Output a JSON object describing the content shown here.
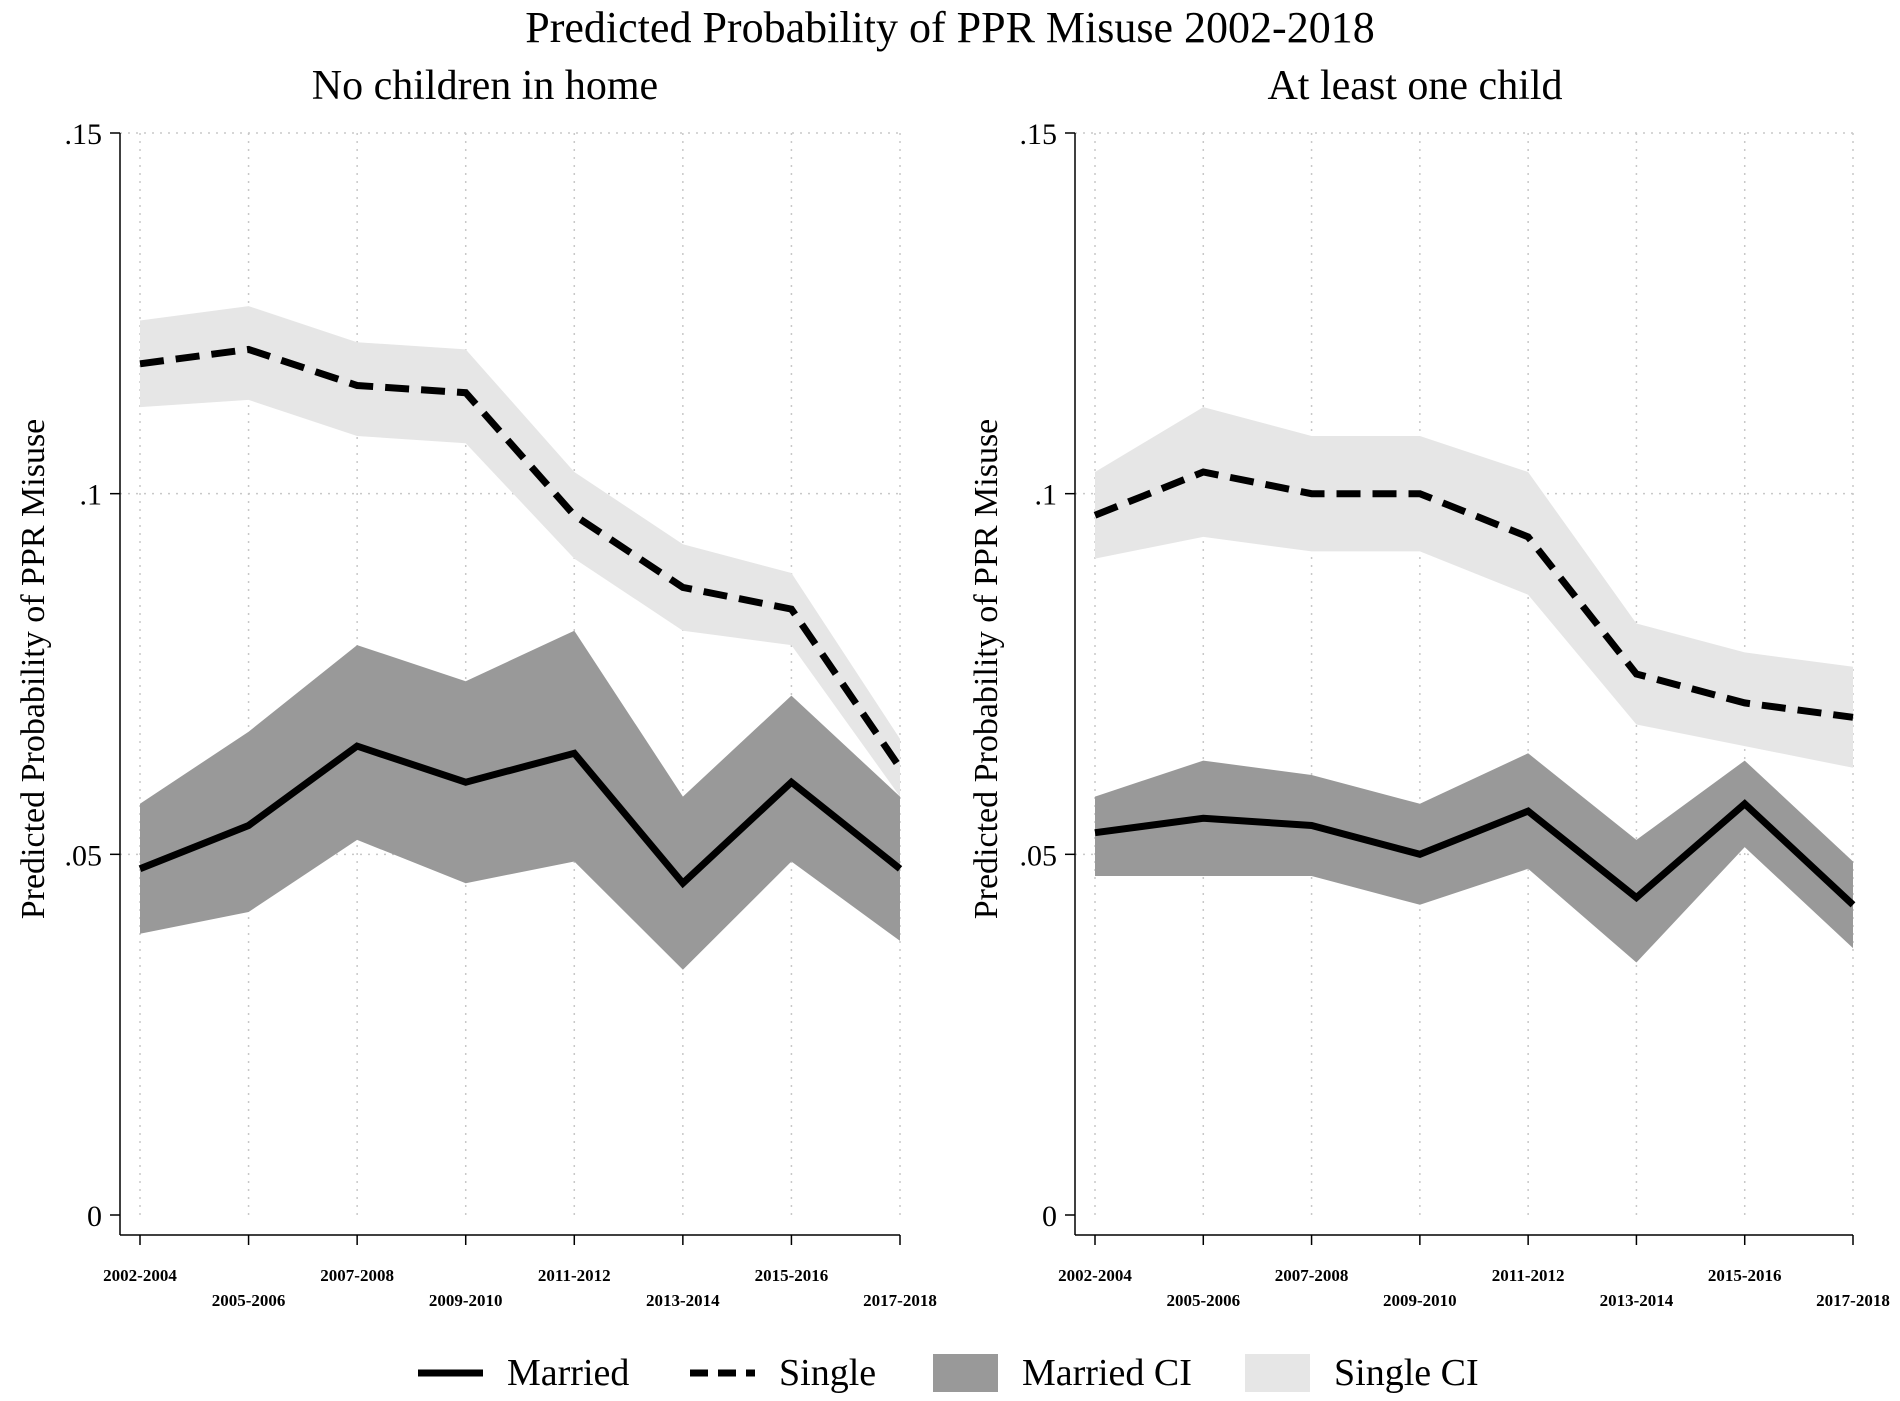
{
  "title": "Predicted Probability of PPR Misuse 2002-2018",
  "colors": {
    "line": "#000000",
    "married_ci": "#999999",
    "single_ci": "#e6e6e6",
    "grid": "#c8c8c8"
  },
  "legend": [
    {
      "key": "married",
      "label": "Married"
    },
    {
      "key": "single",
      "label": "Single"
    },
    {
      "key": "married_ci",
      "label": "Married CI"
    },
    {
      "key": "single_ci",
      "label": "Single CI"
    }
  ],
  "chart_data": [
    {
      "type": "line",
      "title": "No children in home",
      "ylabel": "Predicted Probability of PPR Misuse",
      "xlabel": "",
      "ylim": [
        0,
        0.15
      ],
      "yticks": [
        0,
        0.05,
        0.1,
        0.15
      ],
      "ytick_labels": [
        "0",
        ".05",
        ".1",
        ".15"
      ],
      "categories": [
        "2002-2004",
        "2005-2006",
        "2007-2008",
        "2009-2010",
        "2011-2012",
        "2013-2014",
        "2015-2016",
        "2017-2018"
      ],
      "series": [
        {
          "name": "Married",
          "style": "solid",
          "values": [
            0.048,
            0.054,
            0.065,
            0.06,
            0.064,
            0.046,
            0.06,
            0.048
          ]
        },
        {
          "name": "Single",
          "style": "dashed",
          "values": [
            0.118,
            0.12,
            0.115,
            0.114,
            0.097,
            0.087,
            0.084,
            0.062
          ]
        }
      ],
      "bands": [
        {
          "name": "Married CI",
          "lower": [
            0.039,
            0.042,
            0.052,
            0.046,
            0.049,
            0.034,
            0.049,
            0.038
          ],
          "upper": [
            0.057,
            0.067,
            0.079,
            0.074,
            0.081,
            0.058,
            0.072,
            0.058
          ]
        },
        {
          "name": "Single CI",
          "lower": [
            0.112,
            0.113,
            0.108,
            0.107,
            0.091,
            0.081,
            0.079,
            0.058
          ],
          "upper": [
            0.124,
            0.126,
            0.121,
            0.12,
            0.103,
            0.093,
            0.089,
            0.066
          ]
        }
      ]
    },
    {
      "type": "line",
      "title": "At least one child",
      "ylabel": "Predicted Probability of PPR Misuse",
      "xlabel": "",
      "ylim": [
        0,
        0.15
      ],
      "yticks": [
        0,
        0.05,
        0.1,
        0.15
      ],
      "ytick_labels": [
        "0",
        ".05",
        ".1",
        ".15"
      ],
      "categories": [
        "2002-2004",
        "2005-2006",
        "2007-2008",
        "2009-2010",
        "2011-2012",
        "2013-2014",
        "2015-2016",
        "2017-2018"
      ],
      "series": [
        {
          "name": "Married",
          "style": "solid",
          "values": [
            0.053,
            0.055,
            0.054,
            0.05,
            0.056,
            0.044,
            0.057,
            0.043
          ]
        },
        {
          "name": "Single",
          "style": "dashed",
          "values": [
            0.097,
            0.103,
            0.1,
            0.1,
            0.094,
            0.075,
            0.071,
            0.069
          ]
        }
      ],
      "bands": [
        {
          "name": "Married CI",
          "lower": [
            0.047,
            0.047,
            0.047,
            0.043,
            0.048,
            0.035,
            0.051,
            0.037
          ],
          "upper": [
            0.058,
            0.063,
            0.061,
            0.057,
            0.064,
            0.052,
            0.063,
            0.049
          ]
        },
        {
          "name": "Single CI",
          "lower": [
            0.091,
            0.094,
            0.092,
            0.092,
            0.086,
            0.068,
            0.065,
            0.062
          ],
          "upper": [
            0.103,
            0.112,
            0.108,
            0.108,
            0.103,
            0.082,
            0.078,
            0.076
          ]
        }
      ]
    }
  ]
}
